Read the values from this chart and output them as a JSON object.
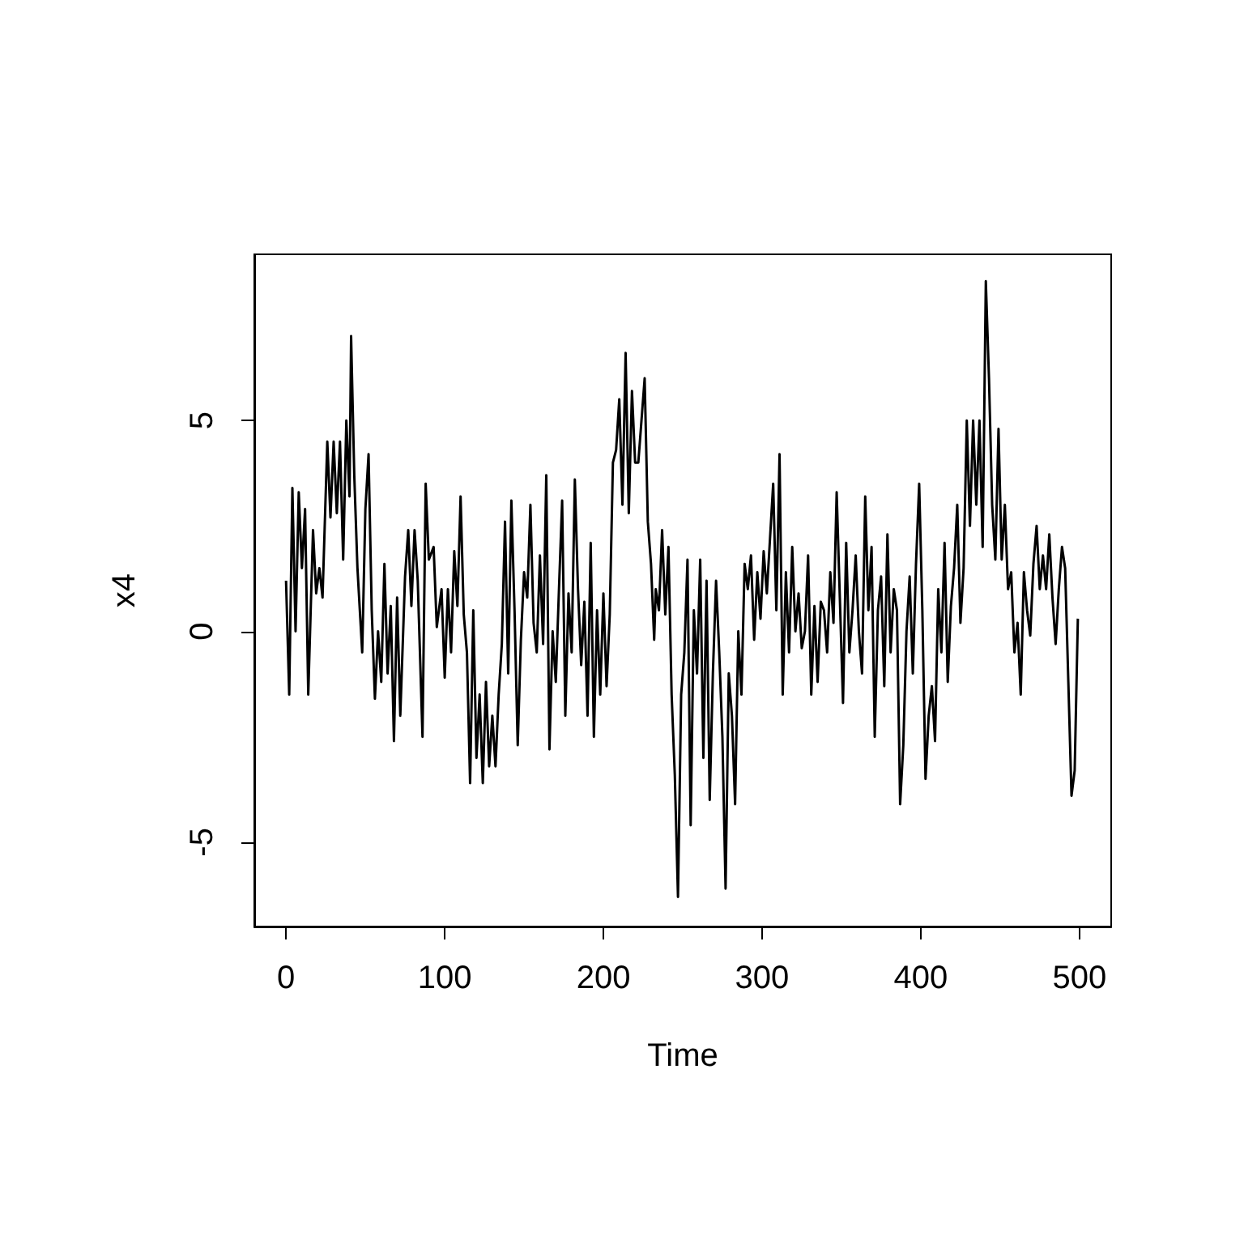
{
  "chart_data": {
    "type": "line",
    "xlabel": "Time",
    "ylabel": "x4",
    "xlim": [
      -20,
      520
    ],
    "xticks": [
      0,
      100,
      200,
      300,
      400,
      500
    ],
    "ylim": [
      -7,
      8.94
    ],
    "yticks": [
      -5,
      0,
      5
    ],
    "marker": "none",
    "line_style": "solid",
    "x": [
      0,
      2,
      4,
      6,
      8,
      10,
      12,
      14,
      17,
      19,
      21,
      23,
      26,
      28,
      30,
      32,
      34,
      36,
      38,
      40,
      41,
      43,
      45,
      48,
      50,
      52,
      54,
      56,
      58,
      60,
      62,
      64,
      66,
      68,
      70,
      72,
      75,
      77,
      79,
      81,
      83,
      86,
      88,
      90,
      93,
      95,
      98,
      100,
      102,
      104,
      106,
      108,
      110,
      112,
      114,
      116,
      118,
      120,
      122,
      124,
      126,
      128,
      130,
      132,
      134,
      136,
      138,
      140,
      142,
      144,
      146,
      148,
      150,
      152,
      154,
      156,
      158,
      160,
      162,
      164,
      166,
      168,
      170,
      172,
      174,
      176,
      178,
      180,
      182,
      184,
      186,
      188,
      190,
      192,
      194,
      196,
      198,
      200,
      202,
      204,
      206,
      208,
      210,
      212,
      214,
      216,
      218,
      220,
      222,
      224,
      226,
      228,
      230,
      232,
      233,
      235,
      237,
      239,
      241,
      243,
      245,
      247,
      249,
      251,
      253,
      255,
      257,
      259,
      261,
      263,
      265,
      267,
      269,
      271,
      273,
      275,
      277,
      279,
      281,
      283,
      285,
      287,
      289,
      291,
      293,
      295,
      297,
      299,
      301,
      303,
      305,
      307,
      309,
      311,
      313,
      315,
      317,
      319,
      321,
      323,
      325,
      327,
      329,
      331,
      333,
      335,
      337,
      339,
      341,
      343,
      345,
      347,
      349,
      351,
      353,
      355,
      357,
      359,
      361,
      363,
      365,
      367,
      369,
      371,
      373,
      375,
      377,
      379,
      381,
      383,
      385,
      387,
      389,
      391,
      393,
      395,
      397,
      399,
      401,
      403,
      405,
      407,
      409,
      411,
      413,
      415,
      417,
      419,
      421,
      423,
      425,
      427,
      429,
      431,
      433,
      435,
      437,
      439,
      441,
      443,
      445,
      447,
      449,
      451,
      453,
      455,
      457,
      459,
      461,
      463,
      465,
      467,
      469,
      471,
      473,
      475,
      477,
      479,
      481,
      483,
      485,
      487,
      489,
      491,
      493,
      495,
      497,
      499
    ],
    "series": [
      {
        "color": "#000000",
        "values": [
          1.2,
          -1.5,
          3.4,
          0,
          3.3,
          1.5,
          2.9,
          -1.5,
          2.4,
          0.9,
          1.5,
          0.8,
          4.5,
          2.7,
          4.5,
          2.8,
          4.5,
          1.7,
          5.0,
          3.2,
          7.0,
          3.7,
          1.5,
          -0.5,
          2.9,
          4.2,
          0.5,
          -1.6,
          0.0,
          -1.2,
          1.6,
          -1.0,
          0.6,
          -2.6,
          0.8,
          -2.0,
          1.3,
          2.4,
          0.6,
          2.4,
          1.2,
          -2.5,
          3.5,
          1.7,
          2.0,
          0.1,
          1.0,
          -1.1,
          1.0,
          -0.5,
          1.9,
          0.6,
          3.2,
          0.4,
          -0.5,
          -3.6,
          0.5,
          -3.0,
          -1.5,
          -3.6,
          -1.2,
          -3.2,
          -2.0,
          -3.2,
          -1.5,
          -0.3,
          2.6,
          -1.0,
          3.1,
          0.5,
          -2.7,
          -0.2,
          1.4,
          0.8,
          3.0,
          0.2,
          -0.5,
          1.8,
          -0.3,
          3.7,
          -2.8,
          0.0,
          -1.2,
          1.0,
          3.1,
          -2.0,
          0.9,
          -0.5,
          3.6,
          1.0,
          -0.8,
          0.7,
          -2.0,
          2.1,
          -2.5,
          0.5,
          -1.5,
          0.9,
          -1.3,
          0.4,
          4.0,
          4.3,
          5.5,
          3.0,
          6.6,
          2.8,
          5.7,
          4.0,
          4.0,
          5.0,
          6.0,
          2.6,
          1.6,
          -0.2,
          1.0,
          0.5,
          2.4,
          0.4,
          2.0,
          -1.5,
          -3.4,
          -6.3,
          -1.5,
          -0.5,
          1.7,
          -4.6,
          0.5,
          -1.0,
          1.7,
          -3.0,
          1.2,
          -4.0,
          -1.0,
          1.2,
          -0.5,
          -2.5,
          -6.1,
          -1.0,
          -2.0,
          -4.1,
          0.0,
          -1.5,
          1.6,
          1.0,
          1.8,
          -0.2,
          1.4,
          0.3,
          1.9,
          0.9,
          2.2,
          3.5,
          0.5,
          4.2,
          -1.5,
          1.4,
          -0.5,
          2.0,
          0.0,
          0.9,
          -0.4,
          0.0,
          1.8,
          -1.5,
          0.6,
          -1.2,
          0.7,
          0.5,
          -0.5,
          1.4,
          0.2,
          3.3,
          0.8,
          -1.7,
          2.1,
          -0.5,
          0.5,
          1.8,
          0.0,
          -1.0,
          3.2,
          0.5,
          2.0,
          -2.5,
          0.5,
          1.3,
          -1.3,
          2.3,
          -0.5,
          1.0,
          0.5,
          -4.1,
          -2.7,
          0.0,
          1.3,
          -1.0,
          1.6,
          3.5,
          0.5,
          -3.5,
          -2.0,
          -1.3,
          -2.6,
          1.0,
          -0.5,
          2.1,
          -1.2,
          0.6,
          1.5,
          3.0,
          0.2,
          1.5,
          5.0,
          2.5,
          5.0,
          3.0,
          5.0,
          2.0,
          8.3,
          6.0,
          3.0,
          1.7,
          4.8,
          1.7,
          3.0,
          1.0,
          1.4,
          -0.5,
          0.2,
          -1.5,
          1.4,
          0.5,
          -0.1,
          1.6,
          2.5,
          1.0,
          1.8,
          1.0,
          2.3,
          0.8,
          -0.3,
          1.0,
          2.0,
          1.5,
          -1.2,
          -3.9,
          -3.3,
          0.3
        ]
      }
    ]
  }
}
